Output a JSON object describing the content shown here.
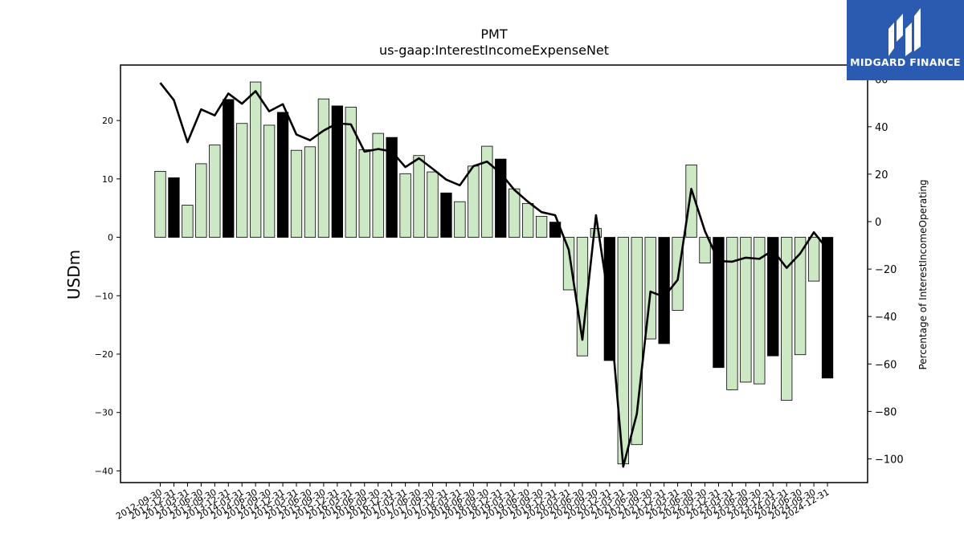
{
  "brand": {
    "name": "MIDGARD FINANCE",
    "bg": "#2b5bb1"
  },
  "chart_data": {
    "type": "bar",
    "title": "PMT",
    "subtitle": "us-gaap:InterestIncomeExpenseNet",
    "ylabel": "USDm",
    "y2label": "Percentage of InterestIncomeOperating",
    "ylim": [
      -42,
      29.5
    ],
    "y2lim": [
      -110,
      66
    ],
    "yticks": [
      -40,
      -30,
      -20,
      -10,
      0,
      10,
      20
    ],
    "y2ticks": [
      -100,
      -80,
      -60,
      -40,
      -20,
      0,
      20,
      40,
      60
    ],
    "colors": {
      "bar": "#cce8c4",
      "bar_q4": "#000000",
      "line": "#000000"
    },
    "categories": [
      "2012-09-30",
      "2012-12-31",
      "2013-03-31",
      "2013-06-30",
      "2013-09-30",
      "2013-12-31",
      "2014-03-31",
      "2014-06-30",
      "2014-09-30",
      "2014-12-31",
      "2015-03-31",
      "2015-06-30",
      "2015-09-30",
      "2015-12-31",
      "2016-03-31",
      "2016-06-30",
      "2016-09-30",
      "2016-12-31",
      "2017-03-31",
      "2017-06-30",
      "2017-09-30",
      "2017-12-31",
      "2018-03-31",
      "2018-06-30",
      "2018-09-30",
      "2018-12-31",
      "2019-03-31",
      "2019-06-30",
      "2019-09-30",
      "2019-12-31",
      "2020-03-31",
      "2020-06-30",
      "2020-09-30",
      "2020-12-31",
      "2021-03-31",
      "2021-06-30",
      "2021-09-30",
      "2021-12-31",
      "2022-03-31",
      "2022-06-30",
      "2022-09-30",
      "2022-12-31",
      "2023-03-31",
      "2023-06-30",
      "2023-09-30",
      "2023-12-31",
      "2024-03-31",
      "2024-06-30",
      "2024-09-30",
      "2024-12-31"
    ],
    "series": [
      {
        "type": "bar",
        "values": [
          11.3,
          10.2,
          5.5,
          12.6,
          15.8,
          23.6,
          19.5,
          26.6,
          19.2,
          21.4,
          14.9,
          15.5,
          23.7,
          22.5,
          22.3,
          15.0,
          17.8,
          17.1,
          10.9,
          14.0,
          11.2,
          7.6,
          6.1,
          12.2,
          15.6,
          13.4,
          8.3,
          5.8,
          3.6,
          2.6,
          -9.0,
          -20.3,
          1.5,
          -21.1,
          -38.8,
          -35.5,
          -17.4,
          -18.2,
          -12.5,
          12.4,
          -4.4,
          -22.3,
          -26.1,
          -24.8,
          -25.1,
          -20.3,
          -27.9,
          -20.1,
          -7.5,
          -24.1
        ]
      },
      {
        "type": "line",
        "axis": "right",
        "values": [
          58.5,
          51.2,
          33.5,
          47.3,
          44.8,
          54.0,
          49.7,
          55.0,
          46.5,
          49.5,
          36.7,
          34.3,
          38.4,
          41.4,
          41.0,
          29.5,
          30.6,
          29.6,
          23.0,
          26.7,
          22.3,
          17.7,
          15.3,
          23.4,
          25.3,
          20.4,
          13.4,
          8.4,
          4.0,
          2.7,
          -11.9,
          -49.8,
          2.7,
          -35.6,
          -103.3,
          -81.0,
          -29.5,
          -31.7,
          -24.5,
          13.8,
          -4.0,
          -16.6,
          -16.9,
          -15.2,
          -15.7,
          -12.1,
          -19.5,
          -13.4,
          -4.5,
          -11.6
        ]
      }
    ]
  }
}
